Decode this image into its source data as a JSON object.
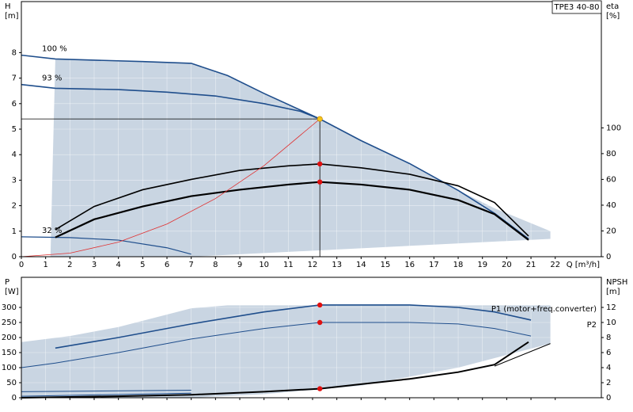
{
  "title": "TPE3 40-80",
  "chart_data": [
    {
      "type": "line",
      "ylabel": "H",
      "yunit": "[m]",
      "y2label": "eta",
      "y2unit": "[%]",
      "xlabel": "Q [m³/h]",
      "xlim": [
        0,
        23.9
      ],
      "xticks": [
        0,
        1,
        2,
        3,
        4,
        5,
        6,
        7,
        8,
        9,
        10,
        11,
        12,
        13,
        14,
        15,
        16,
        17,
        18,
        19,
        20,
        21,
        22
      ],
      "ylim": [
        0,
        10
      ],
      "yticks": [
        0,
        1,
        2,
        3,
        4,
        5,
        6,
        7,
        8
      ],
      "y2lim": [
        0,
        198
      ],
      "y2ticks": [
        0,
        20,
        40,
        60,
        80,
        100
      ],
      "grid": true,
      "areas": [
        {
          "color": "#c9d5e2",
          "x": [
            1.2,
            1.25,
            1.3,
            1.4,
            5,
            7,
            8.5,
            10,
            12.3,
            14,
            16,
            18,
            19.5,
            21.8,
            21.8,
            7,
            1.2
          ],
          "values": [
            0,
            2,
            4,
            7.75,
            7.65,
            7.58,
            7.1,
            6.4,
            5.4,
            4.55,
            3.65,
            2.6,
            1.9,
            1.0,
            0.7,
            0,
            0
          ]
        }
      ],
      "series": [
        {
          "name": "100 %",
          "color": "#1f4e8c",
          "width": 1.6,
          "x": [
            0,
            1.4,
            5,
            7,
            8.5,
            10,
            12.3,
            14,
            16,
            18,
            19.5,
            20.9
          ],
          "values": [
            7.9,
            7.75,
            7.65,
            7.58,
            7.1,
            6.4,
            5.4,
            4.55,
            3.65,
            2.6,
            1.7,
            0.7
          ]
        },
        {
          "name": "93 %",
          "color": "#1f4e8c",
          "width": 1.6,
          "x": [
            0,
            1.4,
            4,
            6,
            8,
            10,
            11.5,
            12.3
          ],
          "values": [
            6.75,
            6.6,
            6.55,
            6.45,
            6.3,
            6.0,
            5.7,
            5.4
          ]
        },
        {
          "name": "32 %",
          "color": "#1f4e8c",
          "width": 1.2,
          "x": [
            0,
            2,
            4,
            6,
            7
          ],
          "values": [
            0.78,
            0.75,
            0.65,
            0.35,
            0.1
          ]
        },
        {
          "color": "#000000",
          "width": 1.6,
          "axis": "y2",
          "x": [
            1.4,
            3,
            5,
            7,
            9,
            11,
            12.3,
            14,
            16,
            18,
            19.5,
            20.9
          ],
          "values": [
            21,
            39,
            52,
            60,
            67,
            70.5,
            72,
            69,
            64,
            55,
            42,
            16
          ]
        },
        {
          "color": "#000000",
          "width": 2.2,
          "axis": "y2",
          "x": [
            1.4,
            3,
            5,
            7,
            9,
            11,
            12.3,
            14,
            16,
            18,
            19.5,
            20.9
          ],
          "values": [
            15,
            29,
            39,
            47,
            52,
            56,
            58,
            56,
            52,
            44,
            33,
            13
          ]
        },
        {
          "color": "#e03030",
          "width": 0.8,
          "x": [
            0,
            2,
            4,
            6,
            8,
            10,
            12.3
          ],
          "values": [
            0,
            0.14,
            0.57,
            1.28,
            2.28,
            3.57,
            5.4
          ]
        }
      ],
      "points": [
        {
          "x": 12.3,
          "y": 5.4,
          "color": "#f5c518",
          "crosshair": true
        },
        {
          "x": 12.3,
          "y": 72,
          "color": "#e01010",
          "axis": "y2"
        },
        {
          "x": 12.3,
          "y": 58,
          "color": "#e01010",
          "axis": "y2"
        }
      ]
    },
    {
      "type": "line",
      "ylabel": "P",
      "yunit": "[W]",
      "y2label": "NPSH",
      "y2unit": "[m]",
      "xlim": [
        0,
        23.9
      ],
      "ylim": [
        0,
        400
      ],
      "yticks": [
        0,
        50,
        100,
        150,
        200,
        250,
        300
      ],
      "y2lim": [
        0,
        16
      ],
      "y2ticks": [
        0,
        2,
        4,
        6,
        8,
        10,
        12
      ],
      "grid": true,
      "areas": [
        {
          "color": "#c9d5e2",
          "x": [
            0,
            2,
            4,
            7,
            8.5,
            21.8,
            21.8,
            18,
            14,
            10,
            7,
            0
          ],
          "values": [
            185,
            205,
            235,
            297,
            307,
            307,
            180,
            100,
            40,
            12,
            0,
            0
          ]
        }
      ],
      "series": [
        {
          "name": "P1 (motor+freq.converter)",
          "color": "#1f4e8c",
          "width": 1.6,
          "x": [
            1.4,
            4,
            7,
            10,
            12.3,
            16,
            18,
            19.5,
            21
          ],
          "values": [
            165,
            200,
            245,
            285,
            308,
            308,
            300,
            285,
            258
          ]
        },
        {
          "name": "P2",
          "color": "#1f4e8c",
          "width": 1,
          "x": [
            0,
            1.4,
            4,
            7,
            10,
            12.3,
            16,
            18,
            19.5,
            21
          ],
          "values": [
            100,
            115,
            150,
            195,
            230,
            250,
            250,
            245,
            230,
            205
          ]
        },
        {
          "color": "#1f4e8c",
          "width": 1,
          "x": [
            0,
            7
          ],
          "values": [
            20,
            25
          ]
        },
        {
          "color": "#1f4e8c",
          "width": 1,
          "x": [
            0,
            7
          ],
          "values": [
            5,
            15
          ]
        },
        {
          "color": "#000000",
          "width": 2,
          "axis": "y2",
          "x": [
            0,
            4,
            7,
            10,
            12.3,
            14,
            16,
            18,
            19.5,
            20.9
          ],
          "values": [
            0,
            0.2,
            0.4,
            0.8,
            1.2,
            1.8,
            2.5,
            3.4,
            4.4,
            7.4
          ]
        },
        {
          "color": "#000000",
          "width": 1,
          "axis": "y2",
          "x": [
            19.5,
            21.8
          ],
          "values": [
            4.2,
            7.2
          ]
        }
      ],
      "points": [
        {
          "x": 12.3,
          "y": 308,
          "color": "#e01010"
        },
        {
          "x": 12.3,
          "y": 250,
          "color": "#e01010"
        },
        {
          "x": 12.3,
          "y": 1.2,
          "color": "#e01010",
          "axis": "y2"
        }
      ]
    }
  ]
}
